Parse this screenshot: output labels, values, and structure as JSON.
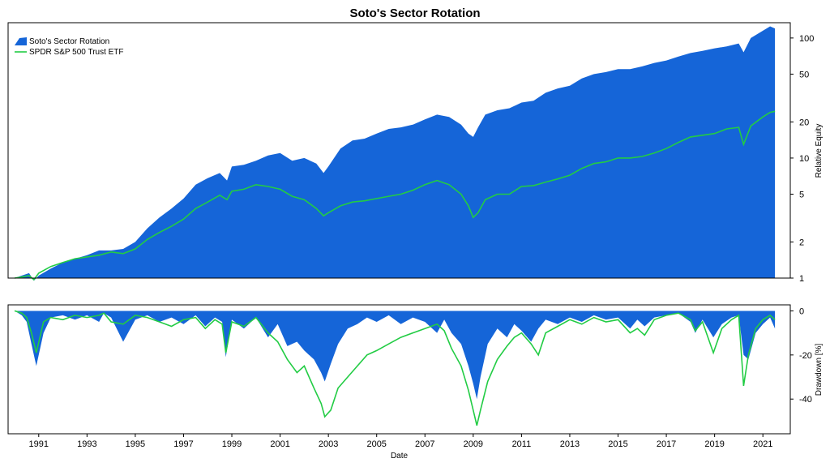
{
  "chart_data": [
    {
      "type": "area",
      "title": "Soto's Sector Rotation",
      "panel": "equity",
      "ylabel": "Relative Equity",
      "yscale": "log",
      "ylim": [
        1,
        130
      ],
      "yticks": [
        1,
        2,
        5,
        10,
        20,
        50,
        100
      ],
      "yticklabels": [
        "1",
        "2",
        "5",
        "10",
        "20",
        "50",
        "100"
      ],
      "legend": [
        "Soto's Sector Rotation",
        "SPDR S&P 500 Trust ETF"
      ],
      "legend_position": "top-left",
      "series": [
        {
          "name": "Soto's Sector Rotation",
          "kind": "area",
          "color": "#1565d8",
          "x": [
            1990.0,
            1990.3,
            1990.6,
            1990.8,
            1991.0,
            1991.5,
            1992.0,
            1992.5,
            1993.0,
            1993.5,
            1994.0,
            1994.5,
            1995.0,
            1995.5,
            1996.0,
            1996.5,
            1997.0,
            1997.5,
            1998.0,
            1998.5,
            1998.8,
            1999.0,
            1999.5,
            2000.0,
            2000.5,
            2001.0,
            2001.5,
            2002.0,
            2002.5,
            2002.8,
            2003.0,
            2003.5,
            2004.0,
            2004.5,
            2005.0,
            2005.5,
            2006.0,
            2006.5,
            2007.0,
            2007.5,
            2008.0,
            2008.5,
            2008.8,
            2009.0,
            2009.2,
            2009.5,
            2010.0,
            2010.5,
            2011.0,
            2011.5,
            2012.0,
            2012.5,
            2013.0,
            2013.5,
            2014.0,
            2014.5,
            2015.0,
            2015.5,
            2016.0,
            2016.5,
            2017.0,
            2017.5,
            2018.0,
            2018.5,
            2019.0,
            2019.5,
            2020.0,
            2020.2,
            2020.5,
            2021.0,
            2021.3,
            2021.5
          ],
          "values": [
            1.0,
            1.05,
            1.1,
            0.95,
            1.05,
            1.2,
            1.35,
            1.45,
            1.55,
            1.7,
            1.7,
            1.75,
            2.0,
            2.6,
            3.2,
            3.8,
            4.6,
            6.0,
            6.8,
            7.5,
            6.5,
            8.5,
            8.8,
            9.5,
            10.5,
            11.0,
            9.5,
            10.0,
            9.0,
            7.5,
            8.5,
            12.0,
            14.0,
            14.5,
            16.0,
            17.5,
            18.0,
            19.0,
            21.0,
            23.0,
            22.0,
            19.0,
            16.0,
            15.0,
            18.0,
            23.0,
            25.0,
            26.0,
            29.0,
            30.0,
            35.0,
            38.0,
            40.0,
            46.0,
            50.0,
            52.0,
            55.0,
            55.0,
            58.0,
            62.0,
            65.0,
            70.0,
            75.0,
            78.0,
            82.0,
            85.0,
            90.0,
            76.0,
            100.0,
            115.0,
            125.0,
            120.0
          ]
        },
        {
          "name": "SPDR S&P 500 Trust ETF",
          "kind": "line",
          "color": "#22cc44",
          "x": [
            1990.0,
            1990.3,
            1990.6,
            1990.8,
            1991.0,
            1991.5,
            1992.0,
            1992.5,
            1993.0,
            1993.5,
            1994.0,
            1994.5,
            1995.0,
            1995.5,
            1996.0,
            1996.5,
            1997.0,
            1997.5,
            1998.0,
            1998.5,
            1998.8,
            1999.0,
            1999.5,
            2000.0,
            2000.5,
            2001.0,
            2001.5,
            2002.0,
            2002.5,
            2002.8,
            2003.0,
            2003.5,
            2004.0,
            2004.5,
            2005.0,
            2005.5,
            2006.0,
            2006.5,
            2007.0,
            2007.5,
            2008.0,
            2008.5,
            2008.8,
            2009.0,
            2009.2,
            2009.5,
            2010.0,
            2010.5,
            2011.0,
            2011.5,
            2012.0,
            2012.5,
            2013.0,
            2013.5,
            2014.0,
            2014.5,
            2015.0,
            2015.5,
            2016.0,
            2016.5,
            2017.0,
            2017.5,
            2018.0,
            2018.5,
            2019.0,
            2019.5,
            2020.0,
            2020.2,
            2020.5,
            2021.0,
            2021.3,
            2021.5
          ],
          "values": [
            1.0,
            1.02,
            1.05,
            0.97,
            1.1,
            1.25,
            1.35,
            1.45,
            1.5,
            1.55,
            1.65,
            1.6,
            1.75,
            2.1,
            2.4,
            2.7,
            3.1,
            3.8,
            4.3,
            4.9,
            4.5,
            5.3,
            5.5,
            6.0,
            5.8,
            5.5,
            4.8,
            4.5,
            3.8,
            3.3,
            3.5,
            4.0,
            4.3,
            4.4,
            4.6,
            4.8,
            5.0,
            5.4,
            6.0,
            6.5,
            6.0,
            5.0,
            4.0,
            3.2,
            3.5,
            4.5,
            5.0,
            5.0,
            5.8,
            5.9,
            6.3,
            6.7,
            7.2,
            8.2,
            9.0,
            9.3,
            10.0,
            10.0,
            10.3,
            11.0,
            12.0,
            13.5,
            15.0,
            15.5,
            16.0,
            17.5,
            18.0,
            13.0,
            18.5,
            22.0,
            24.0,
            24.5
          ]
        }
      ]
    },
    {
      "type": "area",
      "panel": "drawdown",
      "xlabel": "Date",
      "ylabel": "Drawdown [%]",
      "ylim": [
        -55,
        2
      ],
      "yticks": [
        0,
        -20,
        -40
      ],
      "yticklabels": [
        "0",
        "-20",
        "-40"
      ],
      "xlim": [
        1990.0,
        2021.9
      ],
      "xticks": [
        1991,
        1993,
        1995,
        1997,
        1999,
        2001,
        2003,
        2005,
        2007,
        2009,
        2011,
        2013,
        2015,
        2017,
        2019,
        2021
      ],
      "xticklabels": [
        "1991",
        "1993",
        "1995",
        "1997",
        "1999",
        "2001",
        "2003",
        "2005",
        "2007",
        "2009",
        "2011",
        "2013",
        "2015",
        "2017",
        "2019",
        "2021"
      ],
      "series": [
        {
          "name": "Soto's Sector Rotation",
          "kind": "area",
          "color": "#1565d8",
          "x": [
            1990.0,
            1990.3,
            1990.5,
            1990.7,
            1990.9,
            1991.2,
            1991.5,
            1992.0,
            1992.5,
            1993.0,
            1993.5,
            1993.7,
            1994.0,
            1994.5,
            1995.0,
            1995.5,
            1996.0,
            1996.5,
            1997.0,
            1997.5,
            1997.9,
            1998.3,
            1998.6,
            1998.75,
            1999.0,
            1999.5,
            2000.0,
            2000.5,
            2000.9,
            2001.3,
            2001.7,
            2002.0,
            2002.4,
            2002.7,
            2002.85,
            2003.1,
            2003.4,
            2003.8,
            2004.2,
            2004.6,
            2005.0,
            2005.5,
            2006.0,
            2006.5,
            2007.0,
            2007.5,
            2007.8,
            2008.1,
            2008.5,
            2008.8,
            2009.0,
            2009.15,
            2009.3,
            2009.6,
            2010.0,
            2010.4,
            2010.7,
            2011.0,
            2011.4,
            2011.7,
            2012.0,
            2012.5,
            2013.0,
            2013.5,
            2014.0,
            2014.5,
            2015.0,
            2015.5,
            2015.8,
            2016.1,
            2016.5,
            2017.0,
            2017.5,
            2018.0,
            2018.2,
            2018.5,
            2018.95,
            2019.3,
            2019.7,
            2020.0,
            2020.2,
            2020.4,
            2020.7,
            2021.0,
            2021.3,
            2021.5
          ],
          "values": [
            0,
            -2,
            -5,
            -15,
            -25,
            -10,
            -3,
            -2,
            -4,
            -2,
            -5,
            -1,
            -3,
            -14,
            -4,
            -2,
            -5,
            -3,
            -6,
            -2,
            -7,
            -3,
            -5,
            -21,
            -4,
            -8,
            -3,
            -12,
            -6,
            -16,
            -14,
            -18,
            -22,
            -28,
            -32,
            -24,
            -15,
            -8,
            -6,
            -3,
            -5,
            -2,
            -6,
            -3,
            -5,
            -10,
            -4,
            -10,
            -15,
            -25,
            -33,
            -40,
            -30,
            -15,
            -8,
            -12,
            -6,
            -9,
            -14,
            -8,
            -4,
            -6,
            -3,
            -5,
            -2,
            -4,
            -3,
            -8,
            -4,
            -7,
            -3,
            -2,
            -1,
            -5,
            -10,
            -4,
            -12,
            -6,
            -3,
            -2,
            -20,
            -22,
            -10,
            -6,
            -3,
            -8
          ]
        },
        {
          "name": "SPDR S&P 500 Trust ETF",
          "kind": "line",
          "color": "#22cc44",
          "x": [
            1990.0,
            1990.3,
            1990.5,
            1990.7,
            1990.9,
            1991.2,
            1991.5,
            1992.0,
            1992.5,
            1993.0,
            1993.5,
            1993.7,
            1994.0,
            1994.5,
            1995.0,
            1995.5,
            1996.0,
            1996.5,
            1997.0,
            1997.5,
            1997.9,
            1998.3,
            1998.6,
            1998.75,
            1999.0,
            1999.5,
            2000.0,
            2000.5,
            2000.9,
            2001.3,
            2001.7,
            2002.0,
            2002.4,
            2002.7,
            2002.85,
            2003.1,
            2003.4,
            2003.8,
            2004.2,
            2004.6,
            2005.0,
            2005.5,
            2006.0,
            2006.5,
            2007.0,
            2007.5,
            2007.8,
            2008.1,
            2008.5,
            2008.8,
            2009.0,
            2009.15,
            2009.3,
            2009.6,
            2010.0,
            2010.4,
            2010.7,
            2011.0,
            2011.4,
            2011.7,
            2012.0,
            2012.5,
            2013.0,
            2013.5,
            2014.0,
            2014.5,
            2015.0,
            2015.5,
            2015.8,
            2016.1,
            2016.5,
            2017.0,
            2017.5,
            2018.0,
            2018.2,
            2018.5,
            2018.95,
            2019.3,
            2019.7,
            2020.0,
            2020.2,
            2020.4,
            2020.7,
            2021.0,
            2021.3,
            2021.5
          ],
          "values": [
            0,
            -1,
            -3,
            -10,
            -19,
            -5,
            -3,
            -4,
            -2,
            -3,
            -2,
            -1,
            -5,
            -6,
            -2,
            -3,
            -5,
            -7,
            -4,
            -3,
            -8,
            -4,
            -6,
            -19,
            -5,
            -7,
            -3,
            -10,
            -14,
            -22,
            -28,
            -25,
            -35,
            -42,
            -48,
            -45,
            -35,
            -30,
            -25,
            -20,
            -18,
            -15,
            -12,
            -10,
            -8,
            -6,
            -9,
            -17,
            -25,
            -36,
            -45,
            -52,
            -45,
            -32,
            -22,
            -16,
            -12,
            -10,
            -15,
            -20,
            -10,
            -7,
            -4,
            -6,
            -3,
            -5,
            -4,
            -10,
            -8,
            -11,
            -4,
            -2,
            -1,
            -4,
            -9,
            -5,
            -19,
            -8,
            -4,
            -2,
            -34,
            -20,
            -8,
            -4,
            -2,
            -4
          ]
        }
      ]
    }
  ]
}
